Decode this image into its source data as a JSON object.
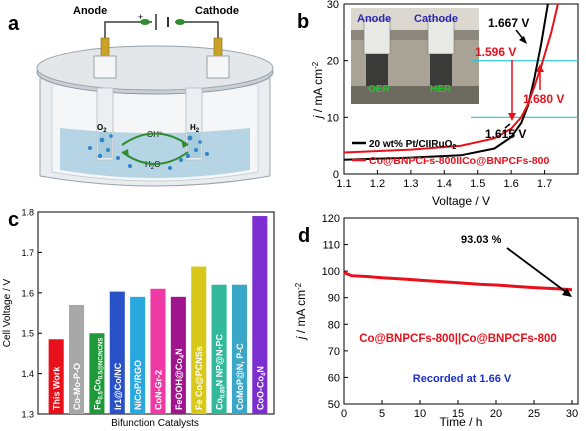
{
  "panels": {
    "a": "a",
    "b": "b",
    "c": "c",
    "d": "d"
  },
  "schematic": {
    "anode": "Anode",
    "cathode": "Cathode",
    "plus": "+",
    "minus": "−",
    "o2": "O",
    "o2_sub": "2",
    "h2": "H",
    "h2_sub": "2",
    "oh": "OH",
    "oh_sup": "−",
    "h2o": "H",
    "h2o_sub": "2",
    "h2o_end": "O",
    "colors": {
      "electrolyte": "#aacfe0",
      "bubble": "#2f83c9",
      "arrow": "#2e8b2e",
      "body": "#dfe4e8"
    }
  },
  "photo": {
    "anode": "Anode",
    "cathode": "Cathode",
    "oer": "OER",
    "her": "HER"
  },
  "chart_data": [
    {
      "id": "b",
      "type": "line",
      "xlabel": "Voltage / V",
      "ylabel_main": "j",
      "ylabel_unit": " / mA cm",
      "ylabel_sup": "-2",
      "xlim": [
        1.1,
        1.8
      ],
      "ylim": [
        0,
        30
      ],
      "xticks": [
        "1.1",
        "1.2",
        "1.3",
        "1.4",
        "1.5",
        "1.6",
        "1.7"
      ],
      "xtick_values": [
        1.1,
        1.2,
        1.3,
        1.4,
        1.5,
        1.6,
        1.7
      ],
      "yticks": [
        "0",
        "10",
        "20",
        "30"
      ],
      "ytick_values": [
        0,
        10,
        20,
        30
      ],
      "series": [
        {
          "name": "20 wt% Pt/CIIRuO",
          "name_sub": "2",
          "color": "#000000",
          "x": [
            1.1,
            1.3,
            1.45,
            1.55,
            1.6,
            1.63,
            1.65,
            1.67,
            1.69,
            1.71
          ],
          "y": [
            2.5,
            2.9,
            3.3,
            4.5,
            6.5,
            9,
            12,
            17,
            23,
            30
          ]
        },
        {
          "name": "Co@BNPCFs-800IICo@BNPCFs-800",
          "name_sub": "",
          "color": "#e8101a",
          "x": [
            1.1,
            1.3,
            1.45,
            1.55,
            1.6,
            1.63,
            1.65,
            1.67,
            1.69,
            1.72,
            1.74
          ],
          "y": [
            3.8,
            4.3,
            5.0,
            6.3,
            8.0,
            10.0,
            12.3,
            15.5,
            19.0,
            25.0,
            30.0
          ]
        }
      ],
      "annotations": [
        {
          "text": "1.667 V",
          "color": "#000000"
        },
        {
          "text": "1.596 V",
          "color": "#e8101a"
        },
        {
          "text": "1.680 V",
          "color": "#e8101a"
        },
        {
          "text": "1.615 V",
          "color": "#000000"
        }
      ],
      "ref_lines": [
        10,
        20
      ],
      "ref_color": "#22c8d0"
    },
    {
      "id": "c",
      "type": "bar",
      "xlabel": "Bifunction Catalysts",
      "ylabel": "Cell Voltage / V",
      "ylim": [
        1.3,
        1.8
      ],
      "yticks": [
        "1.3",
        "1.4",
        "1.5",
        "1.6",
        "1.7",
        "1.8"
      ],
      "ytick_values": [
        1.3,
        1.4,
        1.5,
        1.6,
        1.7,
        1.8
      ],
      "bars": [
        {
          "label": "This Work",
          "value": 1.485,
          "color": "#e8101a"
        },
        {
          "label": "Co-Mo-P-O",
          "value": 1.57,
          "color": "#a8a8a8"
        },
        {
          "label": "Fe",
          "sub1": "0.5",
          "mid": "Co",
          "sub2": "0.5",
          "tail": "@NC/NCNS",
          "value": 1.5,
          "color": "#1f9a3a"
        },
        {
          "label": "Ir1@Co/NC",
          "value": 1.603,
          "color": "#2a52c8"
        },
        {
          "label": "NiCoP/RGO",
          "value": 1.59,
          "color": "#29a8e0"
        },
        {
          "label": "CoN-Gr-2",
          "value": 1.61,
          "color": "#ef3aa6"
        },
        {
          "label": "FeOOH@Co",
          "sub1": "4",
          "mid": "N",
          "value": 1.59,
          "color": "#a0148e"
        },
        {
          "label": "Fe Co@PCNSs",
          "value": 1.665,
          "color": "#d8c81a"
        },
        {
          "label": "Co",
          "sub1": "0.85",
          "mid": "N NP@N-PC",
          "value": 1.62,
          "color": "#32b89a"
        },
        {
          "label": "CoMoP@N, P-C",
          "value": 1.62,
          "color": "#3aa7c8"
        },
        {
          "label": "CoO-Co",
          "sub1": "4",
          "mid": "N",
          "value": 1.79,
          "color": "#7b2fd0"
        }
      ]
    },
    {
      "id": "d",
      "type": "line",
      "xlabel": "Time / h",
      "ylabel_main": "j",
      "ylabel_unit": " / mA cm",
      "ylabel_sup": "-2",
      "xlim": [
        0,
        30
      ],
      "ylim": [
        50,
        120
      ],
      "xticks": [
        "0",
        "5",
        "10",
        "15",
        "20",
        "25",
        "30"
      ],
      "xtick_values": [
        0,
        5,
        10,
        15,
        20,
        25,
        30
      ],
      "yticks": [
        "50",
        "60",
        "70",
        "80",
        "90",
        "100",
        "110",
        "120"
      ],
      "ytick_values": [
        50,
        60,
        70,
        80,
        90,
        100,
        110,
        120
      ],
      "series": [
        {
          "name": "Co@BNPCFs-800||Co@BNPCFs-800",
          "color": "#e8101a",
          "x": [
            0,
            1,
            3,
            5,
            8,
            10,
            13,
            15,
            18,
            20,
            23,
            25,
            28,
            30
          ],
          "y": [
            99.5,
            98.3,
            98.0,
            97.5,
            97.0,
            96.6,
            96.0,
            95.6,
            95.0,
            94.8,
            94.2,
            93.8,
            93.4,
            93.03
          ]
        }
      ],
      "annotation": "93.03 %",
      "note": "Recorded at 1.66 V",
      "note_color": "#1a2fc8"
    }
  ]
}
